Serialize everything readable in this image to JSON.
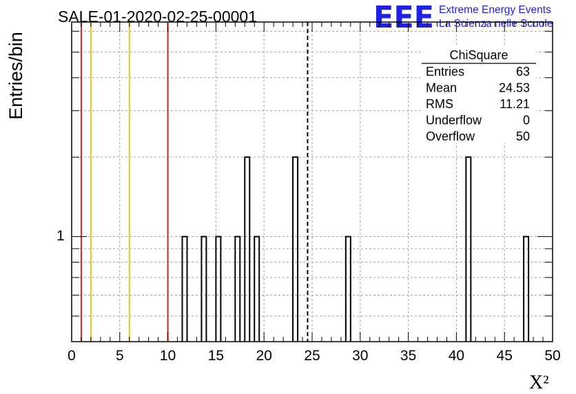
{
  "header": {
    "title": "SALE-01-2020-02-25-00001",
    "logo_text": "EEE",
    "logo_line1": "Extreme Energy Events",
    "logo_line2": "La Scienza nelle Scuole"
  },
  "chart_data": {
    "type": "bar",
    "title": "SALE-01-2020-02-25-00001",
    "xlabel": "X²",
    "ylabel": "Entries/bin",
    "xlim": [
      0,
      50
    ],
    "ylim_log": [
      0.4,
      6.5
    ],
    "yscale": "log",
    "x_ticks": [
      "0",
      "5",
      "10",
      "15",
      "20",
      "25",
      "30",
      "35",
      "40",
      "45",
      "50"
    ],
    "y_tick_label": "1",
    "grid": true,
    "bin_width": 0.5,
    "bins": [
      {
        "x": 11.5,
        "count": 1
      },
      {
        "x": 13.5,
        "count": 1
      },
      {
        "x": 15.0,
        "count": 1
      },
      {
        "x": 17.0,
        "count": 1
      },
      {
        "x": 18.0,
        "count": 2
      },
      {
        "x": 19.0,
        "count": 1
      },
      {
        "x": 23.0,
        "count": 2
      },
      {
        "x": 28.5,
        "count": 1
      },
      {
        "x": 41.0,
        "count": 2
      },
      {
        "x": 47.0,
        "count": 1
      }
    ],
    "vertical_lines": [
      {
        "x": 1,
        "color": "#dd2222",
        "style": "solid"
      },
      {
        "x": 2,
        "color": "#f0c419",
        "style": "solid"
      },
      {
        "x": 6,
        "color": "#f0c419",
        "style": "solid"
      },
      {
        "x": 10,
        "color": "#dd2222",
        "style": "solid"
      },
      {
        "x": 24.53,
        "color": "#000000",
        "style": "dashed"
      }
    ],
    "stats": {
      "name": "ChiSquare",
      "rows": [
        {
          "label": "Entries",
          "value": "63"
        },
        {
          "label": "Mean",
          "value": "24.53"
        },
        {
          "label": "RMS",
          "value": "11.21"
        },
        {
          "label": "Underflow",
          "value": "0"
        },
        {
          "label": "Overflow",
          "value": "50"
        }
      ]
    }
  },
  "colors": {
    "logo": "#2020e6",
    "grid": "#a0a0a0",
    "red_line": "#dd2222",
    "yellow_line": "#f0c419"
  }
}
